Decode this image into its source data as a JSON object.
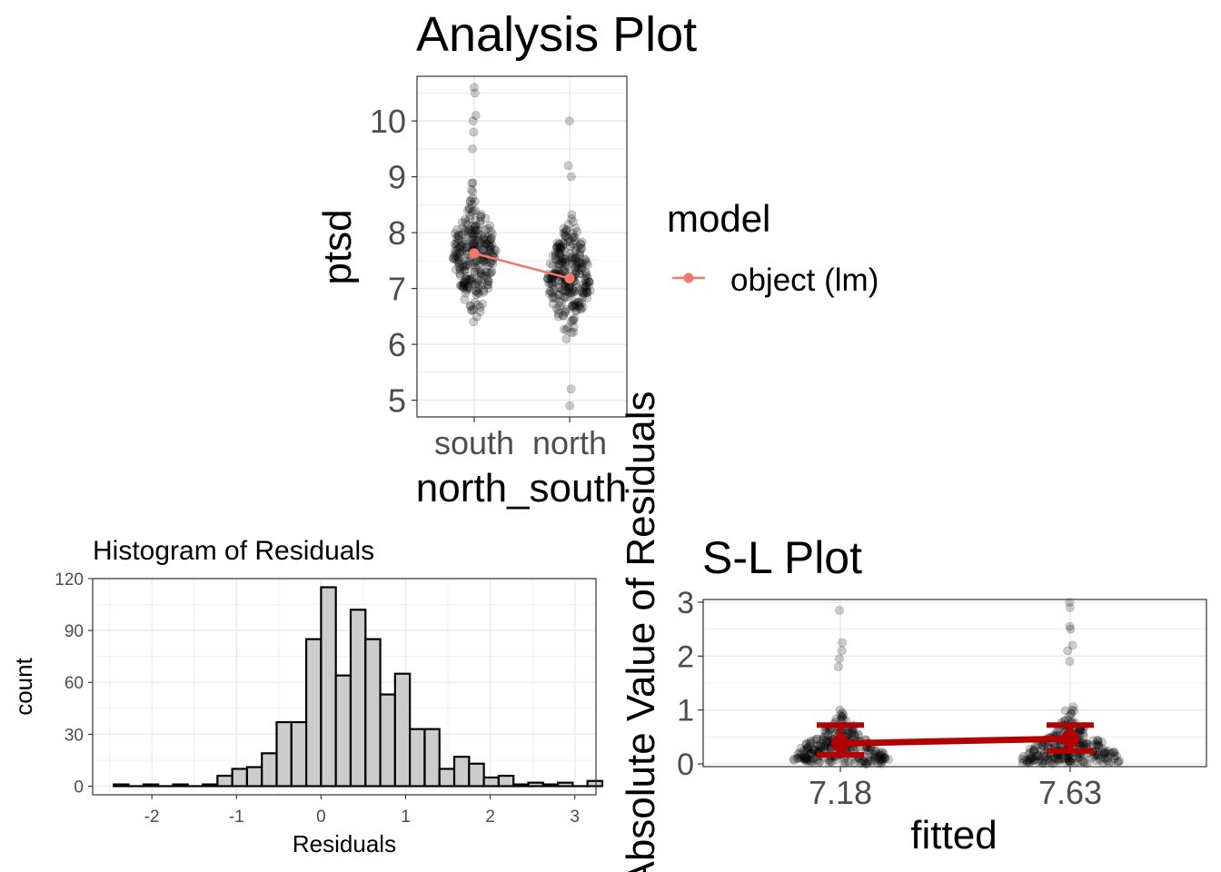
{
  "chart_data": [
    {
      "type": "scatter",
      "title": "Analysis Plot",
      "xlabel": "north_south",
      "ylabel": "ptsd",
      "categories": [
        "south",
        "north"
      ],
      "ylim": [
        4.7,
        10.8
      ],
      "yticks": [
        5,
        6,
        7,
        8,
        9,
        10
      ],
      "grid": true,
      "legend": {
        "title": "model",
        "entries": [
          "object (lm)"
        ],
        "placement": "right"
      },
      "colors": {
        "points": "#000000",
        "model_line": "#F8766D"
      },
      "series": [
        {
          "name": "object (lm)",
          "kind": "line+points",
          "values": [
            7.63,
            7.18
          ]
        }
      ],
      "points": {
        "south": {
          "center": 7.6,
          "sd": 0.66,
          "min": 6.0,
          "outliers": [
            9.5,
            9.8,
            10.0,
            10.1,
            10.5,
            10.6
          ]
        },
        "north": {
          "center": 7.18,
          "sd": 0.62,
          "outliers": [
            4.9,
            5.2,
            9.0,
            9.2,
            10.0
          ]
        }
      }
    },
    {
      "type": "bar",
      "title": "Histogram of Residuals",
      "xlabel": "Residuals",
      "ylabel": "count",
      "xlim": [
        -2.7,
        3.25
      ],
      "ylim": [
        -5,
        120
      ],
      "xticks": [
        -2,
        -1,
        0,
        1,
        2,
        3
      ],
      "yticks": [
        0,
        30,
        60,
        90,
        120
      ],
      "grid": true,
      "colors": {
        "fill": "#cccccc",
        "stroke": "#000000"
      },
      "bin_width": 0.175,
      "bin_start": -2.45,
      "values": [
        1,
        0,
        1,
        0,
        1,
        0,
        1,
        6,
        10,
        11,
        19,
        37,
        37,
        85,
        115,
        64,
        102,
        85,
        53,
        65,
        33,
        33,
        10,
        17,
        13,
        5,
        6,
        1,
        2,
        1,
        2,
        0,
        3
      ]
    },
    {
      "type": "scatter",
      "title": "S-L Plot",
      "xlabel": "fitted",
      "ylabel": "Absolute Value of Residuals",
      "categories": [
        "7.18",
        "7.63"
      ],
      "ylim": [
        -0.05,
        3.05
      ],
      "yticks": [
        0,
        1,
        2,
        3
      ],
      "grid": true,
      "colors": {
        "points": "#000000",
        "summary": "#b30000"
      },
      "summary": [
        {
          "x": "7.18",
          "mean": 0.38,
          "lower": 0.17,
          "upper": 0.72
        },
        {
          "x": "7.63",
          "mean": 0.47,
          "lower": 0.24,
          "upper": 0.72
        }
      ],
      "points": {
        "7.18": {
          "outliers": [
            1.8,
            1.95,
            2.1,
            2.25,
            2.85
          ]
        },
        "7.63": {
          "outliers": [
            1.9,
            2.1,
            2.2,
            2.5,
            2.55,
            2.9,
            3.0
          ]
        }
      }
    }
  ]
}
